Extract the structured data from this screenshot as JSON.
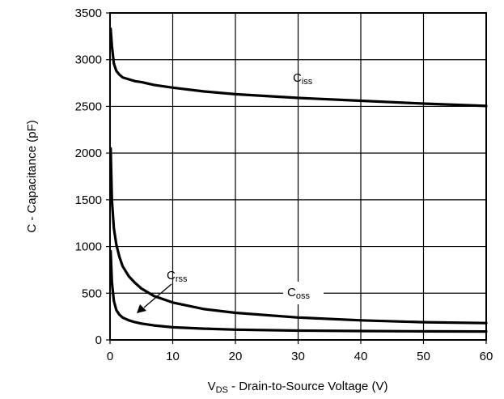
{
  "chart_data": {
    "type": "line",
    "xlabel": {
      "main": "V",
      "sub": "DS",
      "rest": " - Drain-to-Source Voltage (V)"
    },
    "ylabel": "C - Capacitance (pF)",
    "xlim": [
      0,
      60
    ],
    "ylim": [
      0,
      3500
    ],
    "xticks": [
      0,
      10,
      20,
      30,
      40,
      50,
      60
    ],
    "yticks": [
      0,
      500,
      1000,
      1500,
      2000,
      2500,
      3000,
      3500
    ],
    "grid": true,
    "series": [
      {
        "name": "Ciss",
        "label": {
          "main": "C",
          "sub": "iss"
        },
        "x": [
          0.1,
          0.3,
          0.6,
          1,
          1.5,
          2,
          3,
          4,
          5,
          7,
          10,
          15,
          20,
          30,
          40,
          50,
          60
        ],
        "y": [
          3330,
          3150,
          2960,
          2880,
          2840,
          2810,
          2790,
          2770,
          2760,
          2730,
          2700,
          2660,
          2630,
          2590,
          2560,
          2530,
          2505
        ]
      },
      {
        "name": "Coss",
        "label": {
          "main": "C",
          "sub": "oss"
        },
        "x": [
          0.1,
          0.3,
          0.6,
          1,
          1.5,
          2,
          3,
          4,
          5,
          7,
          10,
          15,
          20,
          30,
          40,
          50,
          60
        ],
        "y": [
          2050,
          1500,
          1200,
          1020,
          890,
          790,
          680,
          610,
          550,
          470,
          400,
          330,
          290,
          240,
          210,
          190,
          180
        ]
      },
      {
        "name": "Crss",
        "label": {
          "main": "C",
          "sub": "rss"
        },
        "x": [
          0.1,
          0.3,
          0.6,
          1,
          1.5,
          2,
          3,
          4,
          5,
          7,
          10,
          15,
          20,
          30,
          40,
          50,
          60
        ],
        "y": [
          950,
          620,
          420,
          320,
          270,
          240,
          210,
          190,
          175,
          155,
          135,
          120,
          110,
          100,
          95,
          92,
          90
        ]
      }
    ]
  }
}
